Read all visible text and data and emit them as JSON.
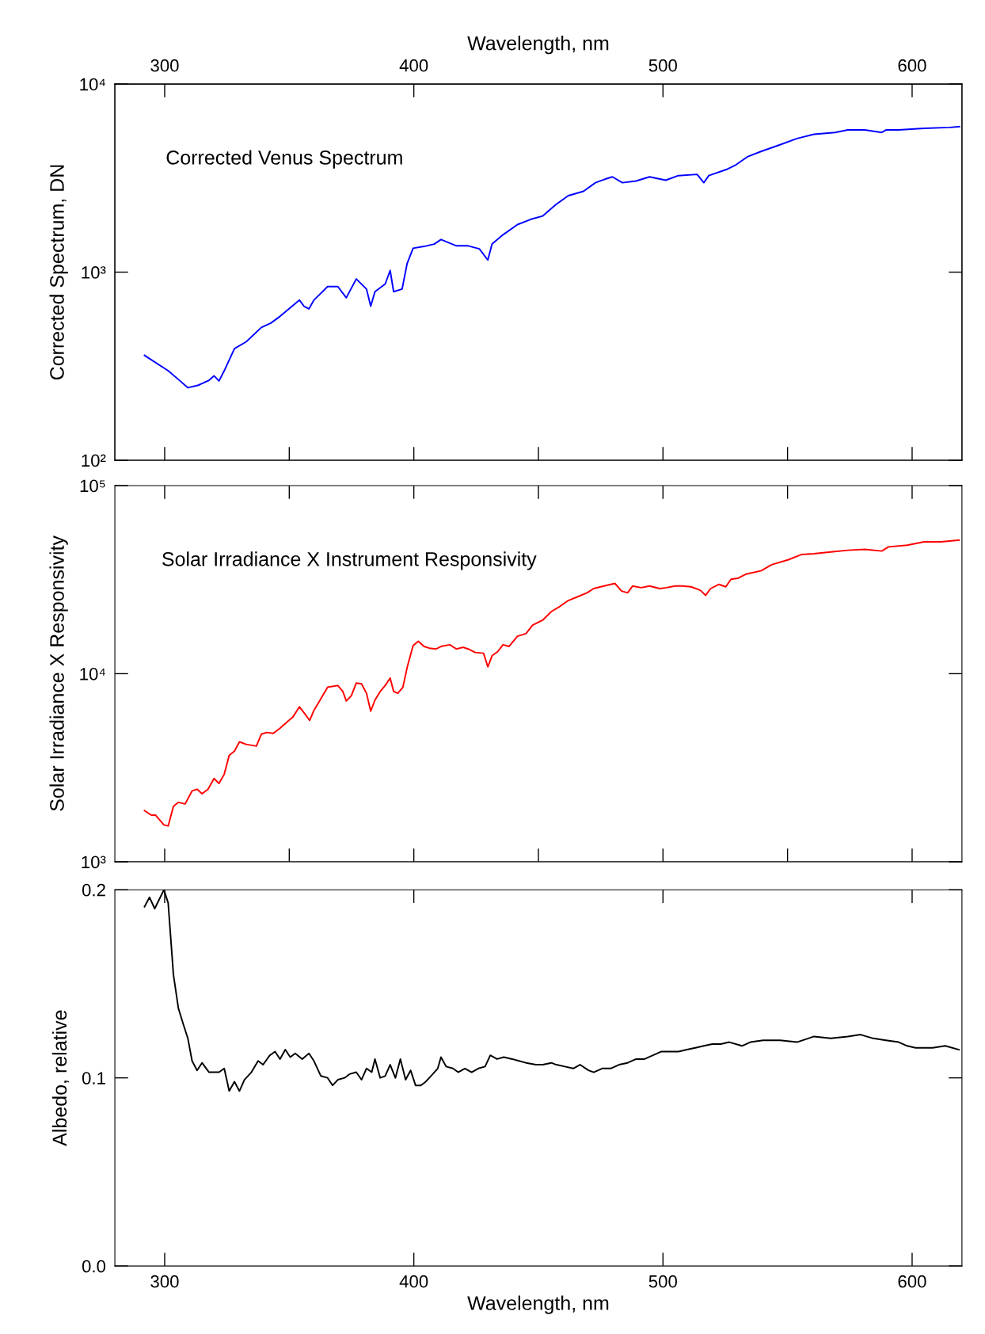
{
  "chart_data": [
    {
      "type": "line",
      "x2label": "Wavelength, nm",
      "ylabel": "Corrected Spectrum, DN",
      "log": "y",
      "grid": false,
      "tick_labels": "y",
      "annotations": [
        "Corrected Venus Spectrum"
      ],
      "xlim": [
        280,
        620
      ],
      "x2lim": [
        280,
        620
      ],
      "x2ticks": [
        300,
        400,
        500,
        600
      ],
      "ylim": [
        100,
        10000
      ],
      "yticks": [
        {
          "value": 100,
          "label": "10²"
        },
        {
          "value": 1000,
          "label": "10³"
        },
        {
          "value": 10000,
          "label": "10⁴"
        }
      ],
      "series": [
        {
          "color": "#0000ff",
          "x": [
            291.9,
            301.4,
            306.2,
            309.3,
            313.3,
            317.8,
            319.8,
            321.8,
            323.9,
            328.0,
            332.7,
            338.8,
            342.6,
            346.3,
            350.4,
            354.1,
            355.9,
            357.9,
            359.9,
            365.4,
            369.5,
            372.9,
            376.9,
            381.0,
            382.7,
            384.4,
            388.5,
            390.5,
            391.9,
            395.3,
            397.3,
            399.7,
            404.1,
            408.2,
            410.9,
            417.1,
            421.8,
            426.3,
            429.7,
            431.4,
            435.8,
            441.6,
            447.0,
            451.8,
            456.9,
            462.0,
            468.1,
            472.9,
            477.6,
            479.7,
            483.7,
            489.2,
            494.6,
            501.1,
            506.2,
            513.7,
            516.4,
            518.4,
            525.9,
            529.3,
            534.1,
            539.5,
            546.3,
            553.8,
            560.6,
            569.1,
            574.2,
            581.0,
            587.8,
            589.5,
            594.6,
            604.8,
            615.0,
            619.0
          ],
          "values": [
            361,
            299,
            264,
            243,
            250,
            266,
            281,
            264,
            299,
            392,
            426,
            508,
            536,
            582,
            646,
            710,
            659,
            638,
            710,
            838,
            838,
            731,
            920,
            813,
            659,
            787,
            865,
            1020,
            787,
            813,
            1110,
            1340,
            1370,
            1410,
            1490,
            1380,
            1380,
            1330,
            1160,
            1410,
            1580,
            1790,
            1910,
            1990,
            2280,
            2550,
            2690,
            2990,
            3150,
            3210,
            2990,
            3050,
            3210,
            3080,
            3260,
            3310,
            2990,
            3260,
            3530,
            3720,
            4120,
            4390,
            4720,
            5130,
            5410,
            5530,
            5700,
            5700,
            5530,
            5700,
            5700,
            5820,
            5880,
            5940
          ]
        }
      ]
    },
    {
      "type": "line",
      "ylabel": "Solar Irradiance X Responsivity",
      "log": "y",
      "grid": false,
      "tick_labels": "y",
      "annotations": [
        "Solar Irradiance X Instrument Responsivity"
      ],
      "xlim": [
        280,
        620
      ],
      "ylim": [
        1000,
        100000
      ],
      "yticks": [
        {
          "value": 1000,
          "label": "10³"
        },
        {
          "value": 10000,
          "label": "10⁴"
        },
        {
          "value": 100000,
          "label": "10⁵"
        }
      ],
      "series": [
        {
          "color": "#ff0000",
          "x": [
            291.9,
            294.6,
            296.3,
            299.7,
            301.4,
            303.5,
            305.5,
            308.2,
            311.0,
            313.0,
            315.0,
            317.4,
            319.8,
            321.8,
            323.9,
            325.9,
            328.0,
            330.0,
            332.7,
            336.8,
            338.8,
            340.9,
            343.6,
            346.3,
            349.0,
            351.4,
            354.1,
            355.9,
            358.2,
            359.9,
            362.0,
            365.4,
            369.5,
            371.5,
            372.9,
            374.9,
            376.9,
            379.0,
            381.0,
            382.7,
            384.4,
            386.5,
            388.5,
            390.5,
            391.9,
            393.6,
            395.6,
            397.3,
            399.7,
            401.8,
            404.1,
            406.2,
            408.9,
            410.9,
            414.4,
            417.1,
            419.8,
            421.8,
            424.6,
            428.0,
            429.7,
            431.4,
            433.7,
            435.8,
            438.2,
            441.6,
            445.0,
            447.7,
            451.8,
            455.2,
            458.6,
            462.0,
            465.4,
            469.5,
            472.2,
            476.3,
            480.7,
            483.4,
            485.8,
            487.8,
            491.2,
            494.6,
            498.7,
            501.4,
            504.8,
            507.9,
            511.3,
            515.0,
            517.1,
            519.1,
            522.5,
            525.2,
            527.3,
            530.0,
            533.4,
            539.5,
            543.6,
            550.4,
            555.5,
            560.6,
            567.4,
            574.2,
            581.0,
            587.8,
            590.5,
            598.0,
            604.8,
            611.6,
            618.8
          ],
          "values": [
            1870,
            1770,
            1770,
            1570,
            1550,
            1970,
            2070,
            2030,
            2380,
            2430,
            2300,
            2430,
            2770,
            2610,
            2920,
            3680,
            3870,
            4340,
            4210,
            4120,
            4770,
            4870,
            4820,
            5130,
            5520,
            5870,
            6660,
            6200,
            5640,
            6380,
            7100,
            8470,
            8650,
            8040,
            7160,
            7630,
            8920,
            8830,
            7870,
            6320,
            7240,
            8040,
            8650,
            9480,
            8040,
            7870,
            8470,
            10760,
            14100,
            14860,
            13960,
            13670,
            13530,
            13960,
            14250,
            13530,
            13810,
            13530,
            12970,
            12840,
            10870,
            12450,
            13110,
            14250,
            13960,
            15810,
            16320,
            18110,
            19280,
            21390,
            22770,
            24490,
            25540,
            26910,
            28340,
            29230,
            30180,
            27480,
            26910,
            29230,
            28650,
            29230,
            28340,
            28650,
            29230,
            29230,
            28970,
            27760,
            26080,
            28340,
            29830,
            28970,
            31770,
            32140,
            33830,
            35290,
            37940,
            40380,
            42980,
            43440,
            44340,
            45300,
            45780,
            44860,
            47210,
            48220,
            50230,
            50230,
            51320
          ]
        }
      ]
    },
    {
      "type": "line",
      "xlabel": "Wavelength, nm",
      "ylabel": "Albedo, relative",
      "grid": false,
      "xlim": [
        280,
        620
      ],
      "xticks": [
        300,
        400,
        500,
        600
      ],
      "ylim": [
        0,
        0.2
      ],
      "yticks": [
        {
          "value": 0,
          "label": "0.0"
        },
        {
          "value": 0.1,
          "label": "0.1"
        },
        {
          "value": 0.2,
          "label": "0.2"
        }
      ],
      "series": [
        {
          "color": "#000000",
          "x": [
            291.9,
            293.9,
            296.0,
            299.7,
            301.4,
            303.5,
            305.5,
            307.6,
            309.3,
            311.0,
            313.0,
            315.0,
            317.8,
            321.8,
            323.9,
            325.9,
            328.0,
            330.0,
            332.0,
            334.8,
            337.5,
            339.5,
            342.2,
            344.3,
            346.3,
            348.4,
            350.4,
            352.4,
            355.2,
            357.9,
            359.9,
            362.7,
            365.4,
            367.4,
            369.5,
            372.2,
            374.2,
            376.9,
            379.0,
            381.0,
            383.1,
            384.4,
            386.5,
            388.5,
            390.5,
            392.6,
            394.6,
            396.7,
            398.7,
            400.7,
            402.8,
            404.8,
            407.6,
            409.6,
            410.9,
            413.0,
            415.7,
            417.8,
            420.5,
            423.2,
            425.9,
            428.6,
            430.7,
            433.4,
            436.1,
            439.5,
            442.2,
            445.0,
            449.0,
            451.8,
            455.2,
            457.2,
            460.6,
            464.0,
            466.7,
            470.1,
            472.2,
            475.6,
            479.0,
            482.4,
            485.8,
            489.2,
            492.6,
            496.0,
            499.4,
            502.8,
            506.2,
            509.6,
            513.0,
            516.4,
            519.8,
            523.2,
            526.6,
            531.7,
            535.1,
            540.2,
            547.0,
            553.8,
            560.6,
            567.4,
            574.2,
            579.3,
            584.4,
            589.5,
            594.6,
            598.0,
            601.4,
            608.2,
            613.3,
            618.8
          ],
          "values": [
            0.191,
            0.196,
            0.19,
            0.2,
            0.193,
            0.155,
            0.137,
            0.128,
            0.121,
            0.109,
            0.104,
            0.108,
            0.103,
            0.103,
            0.105,
            0.093,
            0.098,
            0.093,
            0.099,
            0.103,
            0.109,
            0.107,
            0.112,
            0.114,
            0.11,
            0.115,
            0.111,
            0.113,
            0.11,
            0.113,
            0.109,
            0.101,
            0.1,
            0.096,
            0.099,
            0.1,
            0.102,
            0.103,
            0.099,
            0.105,
            0.103,
            0.11,
            0.1,
            0.101,
            0.107,
            0.1,
            0.11,
            0.099,
            0.104,
            0.096,
            0.096,
            0.098,
            0.102,
            0.105,
            0.111,
            0.106,
            0.105,
            0.103,
            0.105,
            0.103,
            0.105,
            0.106,
            0.112,
            0.11,
            0.111,
            0.11,
            0.109,
            0.108,
            0.107,
            0.107,
            0.108,
            0.107,
            0.106,
            0.105,
            0.107,
            0.104,
            0.103,
            0.105,
            0.105,
            0.107,
            0.108,
            0.11,
            0.11,
            0.112,
            0.114,
            0.114,
            0.114,
            0.115,
            0.116,
            0.117,
            0.118,
            0.118,
            0.119,
            0.117,
            0.119,
            0.12,
            0.12,
            0.119,
            0.122,
            0.121,
            0.122,
            0.123,
            0.121,
            0.12,
            0.119,
            0.117,
            0.116,
            0.116,
            0.117,
            0.115
          ]
        }
      ]
    }
  ]
}
